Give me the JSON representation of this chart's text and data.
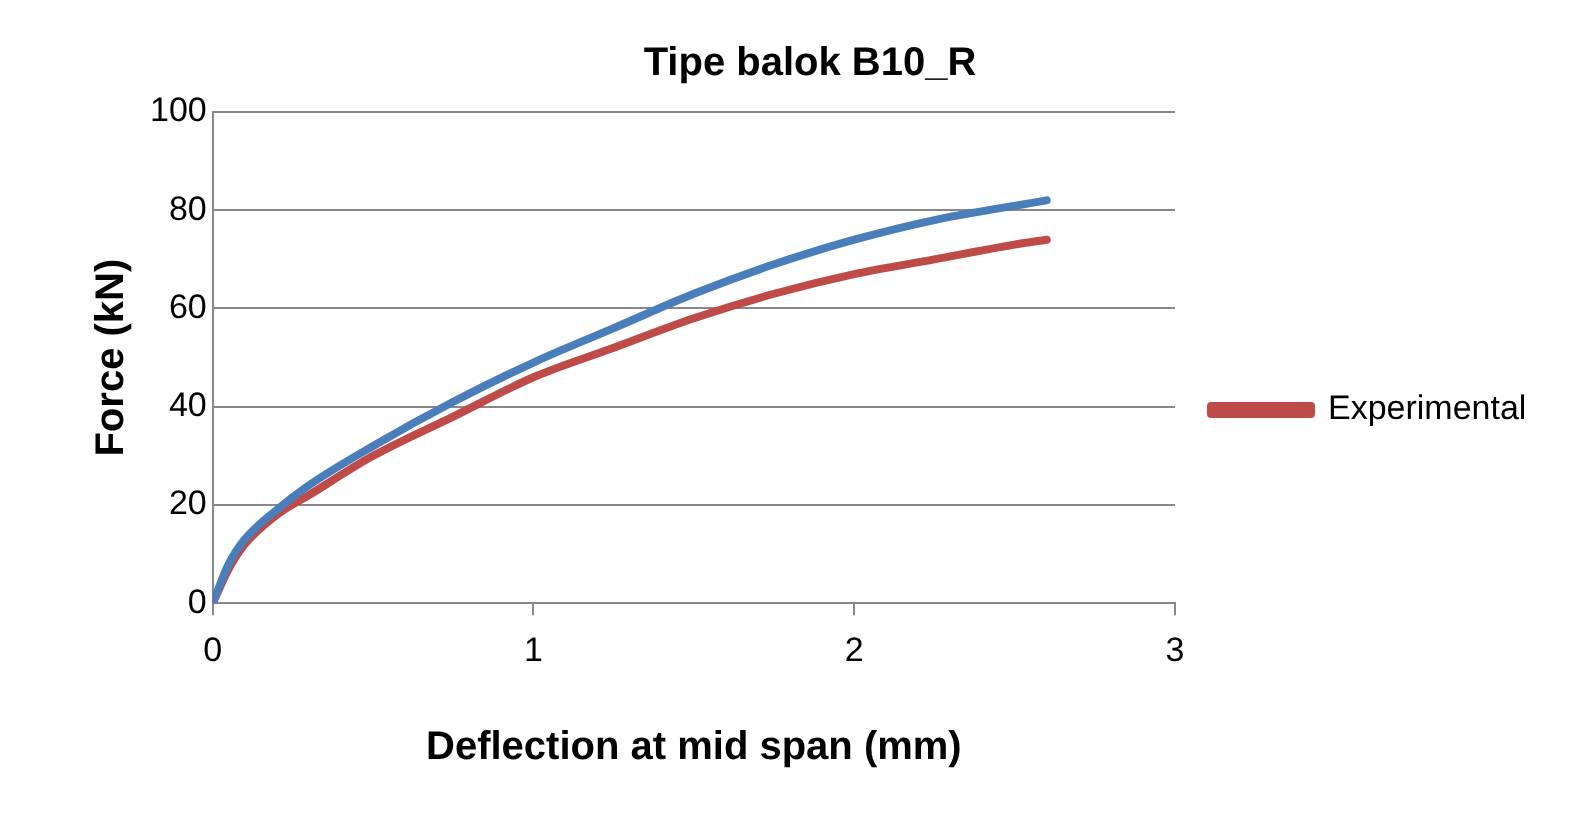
{
  "chart_data": {
    "type": "line",
    "title": "Tipe balok B10_R",
    "xlabel": "Deflection at mid span (mm)",
    "ylabel": "Force (kN)",
    "xlim": [
      0,
      3
    ],
    "xticks": [
      0,
      1,
      2,
      3
    ],
    "ylim": [
      0,
      100
    ],
    "yticks": [
      0,
      20,
      40,
      60,
      80,
      100
    ],
    "grid": "y",
    "legend": "right",
    "marker": "none",
    "line_style": "solid",
    "series": [
      {
        "color": "#4a7ebb",
        "x": [
          0,
          0.05,
          0.1,
          0.2,
          0.3,
          0.5,
          0.75,
          1,
          1.25,
          1.5,
          1.75,
          2,
          2.25,
          2.6
        ],
        "values": [
          0,
          8,
          13,
          19,
          24,
          32,
          41,
          49,
          56,
          63,
          69,
          74,
          78,
          82
        ]
      },
      {
        "name": "Experimental",
        "color": "#be4b48",
        "x": [
          0,
          0.05,
          0.1,
          0.2,
          0.3,
          0.5,
          0.75,
          1,
          1.25,
          1.5,
          1.75,
          2,
          2.25,
          2.5,
          2.6
        ],
        "values": [
          0,
          7,
          12,
          18,
          22,
          30,
          38,
          46,
          52,
          58,
          63,
          67,
          70,
          73,
          74
        ]
      }
    ]
  }
}
